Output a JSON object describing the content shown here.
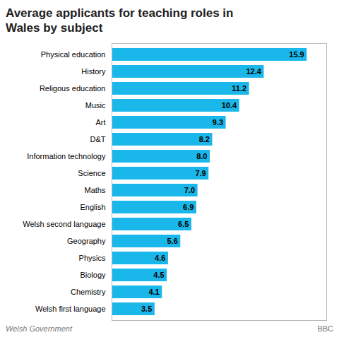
{
  "chart_data": {
    "type": "bar",
    "orientation": "horizontal",
    "title": "Average applicants for teaching roles in\nWales by subject",
    "categories": [
      "Welsh first language",
      "Chemistry",
      "Biology",
      "Physics",
      "Geography",
      "Welsh second language",
      "English",
      "Maths",
      "Science",
      "Information technology",
      "D&T",
      "Art",
      "Music",
      "Religous education",
      "History",
      "Physical education"
    ],
    "values": [
      3.5,
      4.1,
      4.5,
      4.6,
      5.6,
      6.5,
      6.9,
      7.0,
      7.9,
      8.0,
      8.2,
      9.3,
      10.4,
      11.2,
      12.4,
      15.9
    ],
    "value_labels": [
      "3.5",
      "4.1",
      "4.5",
      "4.6",
      "5.6",
      "6.5",
      "6.9",
      "7.0",
      "7.9",
      "8.0",
      "8.2",
      "9.3",
      "10.4",
      "11.2",
      "12.4",
      "15.9"
    ],
    "color": "#1ab7ea",
    "xlim": [
      0,
      17.5
    ],
    "data_labels": true,
    "tick_labels": "y",
    "source": "Welsh Government",
    "annotations": [
      "BBC"
    ]
  }
}
